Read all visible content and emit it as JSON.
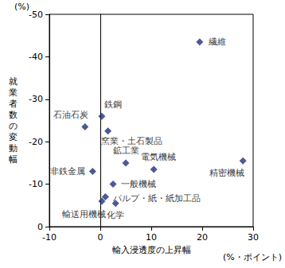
{
  "chart_data": {
    "type": "scatter",
    "xlabel": "輸入浸透度の上昇幅",
    "ylabel": "就業者数の変動幅",
    "annotations": [
      {
        "text": "(%)"
      },
      {
        "text": "(%・ポイント)"
      }
    ],
    "labels": [
      "繊維",
      "精密機械",
      "鉄鋼",
      "窯業・土石製品",
      "石油石炭",
      "鉱工業",
      "電気機械",
      "非鉄金属",
      "一般機械",
      "パルプ・紙・紙加工品",
      "輸送用機械",
      "化学"
    ],
    "x": [
      19.5,
      28,
      0.3,
      1.5,
      -3,
      5,
      10.5,
      -1.5,
      2.5,
      1,
      0.3,
      3
    ],
    "values": [
      -43.5,
      -15.5,
      -26,
      -22.5,
      -23.5,
      -15,
      -13.5,
      -13,
      -10,
      -7,
      -6,
      -5.5
    ],
    "xlim": [
      -10,
      30
    ],
    "xticks": [
      -10,
      0,
      10,
      20,
      30
    ],
    "ylim": [
      0,
      -50
    ],
    "yticks": [
      0,
      -10,
      -20,
      -30,
      -40,
      -50
    ],
    "color": "#1f2f7a",
    "marker": "diamond",
    "data_labels": true,
    "grid": false
  }
}
